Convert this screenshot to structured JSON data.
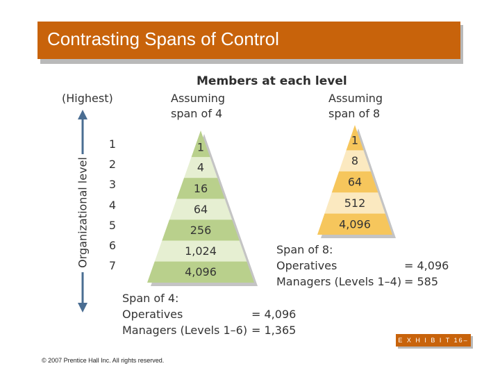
{
  "title": "Contrasting Spans of Control",
  "diagram_title": "Members at each level",
  "axis": {
    "top_label": "(Highest)",
    "axis_label": "Organizational level",
    "levels": [
      "1",
      "2",
      "3",
      "4",
      "5",
      "6",
      "7"
    ]
  },
  "span4": {
    "heading": [
      "Assuming",
      "span of 4"
    ],
    "values": [
      "1",
      "4",
      "16",
      "64",
      "256",
      "1,024",
      "4,096"
    ]
  },
  "span8": {
    "heading": [
      "Assuming",
      "span of 8"
    ],
    "values": [
      "1",
      "8",
      "64",
      "512",
      "4,096"
    ]
  },
  "summary8": {
    "title": "Span of 8:",
    "rows": [
      {
        "label": "Operatives",
        "value": "= 4,096"
      },
      {
        "label": "Managers (Levels 1–4)",
        "value": "= 585"
      }
    ]
  },
  "summary4": {
    "title": "Span of 4:",
    "rows": [
      {
        "label": "Operatives",
        "value": "= 4,096"
      },
      {
        "label": "Managers (Levels 1–6)",
        "value": "= 1,365"
      }
    ]
  },
  "exhibit": "E X H I B I T   16–3",
  "copyright": "© 2007 Prentice Hall Inc. All rights reserved.",
  "colors": {
    "title_bar": "#c8630b",
    "green_dark": "#b9d08c",
    "green_light": "#e6efd2",
    "orange_dark": "#f6c65c",
    "orange_light": "#fbe9c0",
    "arrow": "#4a6d92"
  }
}
